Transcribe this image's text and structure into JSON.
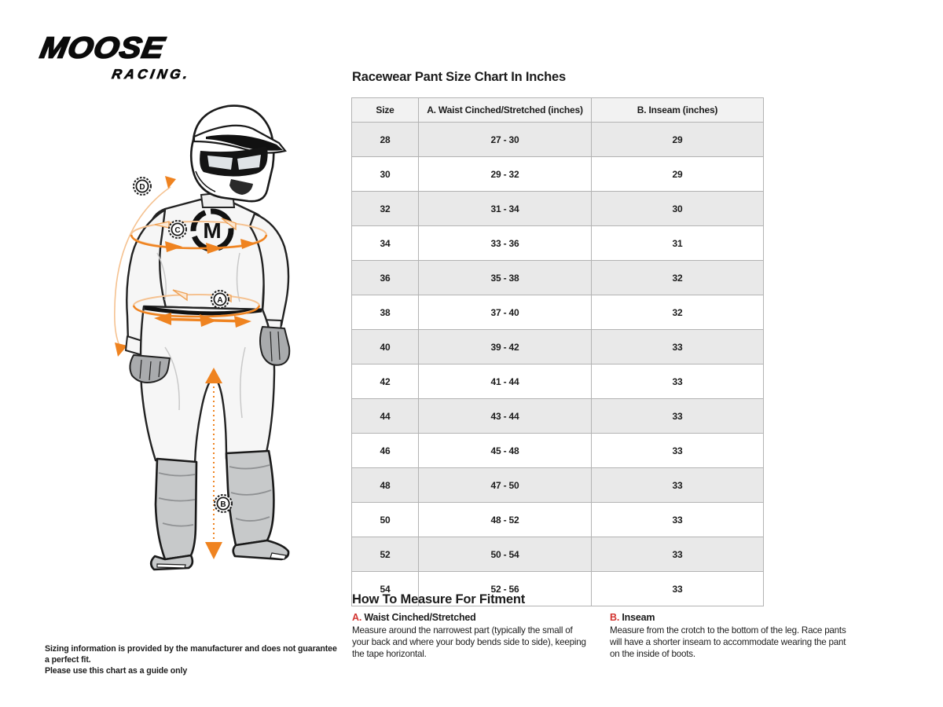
{
  "brand": {
    "name_top": "MOOSE",
    "name_bottom": "RACING."
  },
  "size_chart": {
    "title": "Racewear Pant Size Chart In Inches",
    "columns": [
      "Size",
      "A. Waist Cinched/Stretched (inches)",
      "B. Inseam (inches)"
    ],
    "rows": [
      [
        "28",
        "27 - 30",
        "29"
      ],
      [
        "30",
        "29 - 32",
        "29"
      ],
      [
        "32",
        "31 - 34",
        "30"
      ],
      [
        "34",
        "33 - 36",
        "31"
      ],
      [
        "36",
        "35 - 38",
        "32"
      ],
      [
        "38",
        "37 - 40",
        "32"
      ],
      [
        "40",
        "39 - 42",
        "33"
      ],
      [
        "42",
        "41 - 44",
        "33"
      ],
      [
        "44",
        "43 - 44",
        "33"
      ],
      [
        "46",
        "45 - 48",
        "33"
      ],
      [
        "48",
        "47 - 50",
        "33"
      ],
      [
        "50",
        "48 - 52",
        "33"
      ],
      [
        "52",
        "50 - 54",
        "33"
      ],
      [
        "54",
        "52 - 56",
        "33"
      ]
    ]
  },
  "how_to_measure": {
    "title": "How To Measure For Fitment",
    "items": [
      {
        "letter": "A.",
        "label": "Waist Cinched/Stretched",
        "description": "Measure around the narrowest part (typically the small of your back and where your body bends side to side), keeping the tape horizontal."
      },
      {
        "letter": "B.",
        "label": "Inseam",
        "description": "Measure from the crotch to the bottom of the leg. Race pants will have a shorter inseam to accommodate wearing the pant on the inside of boots."
      }
    ]
  },
  "disclaimer": {
    "line1": "Sizing information is provided by the manufacturer and does not guarantee a perfect fit.",
    "line2": "Please use this chart as a guide only"
  },
  "figure": {
    "markers": [
      "A",
      "B",
      "C",
      "D"
    ],
    "chest_logo_letter": "M"
  },
  "colors": {
    "accent_orange": "#ef8320",
    "accent_orange_pale": "#f5c291",
    "accent_red": "#d23430",
    "table_header_bg": "#f2f2f2",
    "table_row_alt_bg": "#e9e9e9",
    "table_border": "#b3b3b3",
    "ink": "#1c1c1c",
    "boot_gray": "#c7c9ca",
    "glove_gray": "#a9abad",
    "suit_white": "#f6f6f6"
  }
}
